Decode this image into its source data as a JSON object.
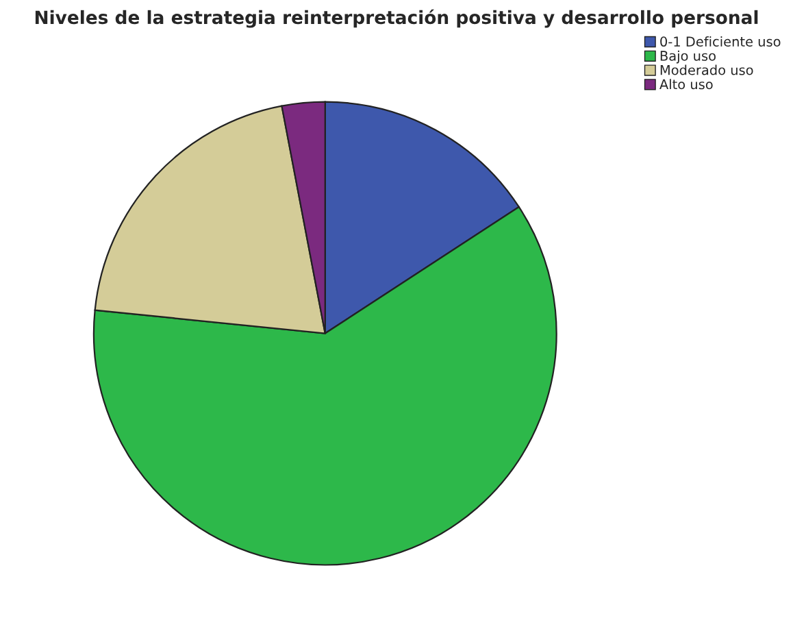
{
  "chart_data": {
    "type": "pie",
    "title": "Niveles de la estrategia reinterpretación positiva y desarrollo personal",
    "categories": [
      "0-1 Deficiente uso",
      "Bajo uso",
      "Moderado uso",
      "Alto uso"
    ],
    "values": [
      15.8,
      60.8,
      20.4,
      3.0
    ],
    "colors": [
      "#3e58ac",
      "#2db84a",
      "#d4cc98",
      "#7b2a7f"
    ],
    "legend": "top right"
  }
}
